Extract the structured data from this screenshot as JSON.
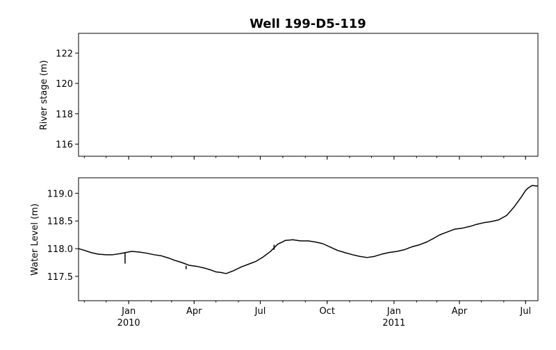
{
  "chart_data": [
    {
      "type": "line",
      "title": "Well 199-D5-119",
      "xlabel": "",
      "ylabel": "River stage (m)",
      "xlim": [
        "2009-10-24",
        "2011-07-18"
      ],
      "ylim": [
        115.2,
        123.3
      ],
      "yticks": [
        116,
        118,
        120,
        122
      ],
      "series": []
    },
    {
      "type": "line",
      "xlabel": "",
      "ylabel": "Water Level (m)",
      "xlim": [
        "2009-10-24",
        "2011-07-18"
      ],
      "ylim": [
        117.06,
        119.28
      ],
      "yticks": [
        117.5,
        118.0,
        118.5,
        119.0
      ],
      "xticks": [
        {
          "date": "2010-01-01",
          "label": "Jan",
          "sublabel": "2010"
        },
        {
          "date": "2010-04-01",
          "label": "Apr",
          "sublabel": ""
        },
        {
          "date": "2010-07-01",
          "label": "Jul",
          "sublabel": ""
        },
        {
          "date": "2010-10-01",
          "label": "Oct",
          "sublabel": ""
        },
        {
          "date": "2011-01-01",
          "label": "Jan",
          "sublabel": "2011"
        },
        {
          "date": "2011-04-01",
          "label": "Apr",
          "sublabel": ""
        },
        {
          "date": "2011-07-01",
          "label": "Jul",
          "sublabel": ""
        }
      ],
      "series": [
        {
          "x": [
            "2009-10-24",
            "2009-11-01",
            "2009-11-10",
            "2009-11-20",
            "2009-12-01",
            "2009-12-10",
            "2009-12-20",
            "2009-12-28",
            "2010-01-05",
            "2010-01-15",
            "2010-01-25",
            "2010-02-05",
            "2010-02-15",
            "2010-02-25",
            "2010-03-05",
            "2010-03-15",
            "2010-03-25",
            "2010-04-05",
            "2010-04-15",
            "2010-04-25",
            "2010-05-01",
            "2010-05-08",
            "2010-05-15",
            "2010-05-25",
            "2010-06-05",
            "2010-06-15",
            "2010-06-25",
            "2010-07-05",
            "2010-07-15",
            "2010-07-25",
            "2010-08-05",
            "2010-08-15",
            "2010-08-25",
            "2010-09-05",
            "2010-09-15",
            "2010-09-25",
            "2010-10-05",
            "2010-10-15",
            "2010-10-25",
            "2010-11-05",
            "2010-11-15",
            "2010-11-25",
            "2010-12-05",
            "2010-12-15",
            "2010-12-25",
            "2011-01-05",
            "2011-01-15",
            "2011-01-25",
            "2011-02-05",
            "2011-02-15",
            "2011-02-25",
            "2011-03-05",
            "2011-03-15",
            "2011-03-25",
            "2011-04-05",
            "2011-04-15",
            "2011-04-25",
            "2011-05-05",
            "2011-05-15",
            "2011-05-25",
            "2011-06-05",
            "2011-06-15",
            "2011-06-25",
            "2011-07-01",
            "2011-07-05",
            "2011-07-10",
            "2011-07-18"
          ],
          "y": [
            118.0,
            117.97,
            117.93,
            117.9,
            117.89,
            117.89,
            117.91,
            117.93,
            117.95,
            117.94,
            117.92,
            117.89,
            117.87,
            117.83,
            117.79,
            117.75,
            117.7,
            117.68,
            117.65,
            117.61,
            117.58,
            117.57,
            117.55,
            117.6,
            117.67,
            117.72,
            117.77,
            117.85,
            117.95,
            118.08,
            118.15,
            118.16,
            118.14,
            118.14,
            118.12,
            118.09,
            118.03,
            117.97,
            117.93,
            117.89,
            117.86,
            117.84,
            117.86,
            117.9,
            117.93,
            117.95,
            117.98,
            118.03,
            118.07,
            118.12,
            118.19,
            118.25,
            118.3,
            118.35,
            118.37,
            118.4,
            118.44,
            118.47,
            118.49,
            118.52,
            118.6,
            118.75,
            118.93,
            119.05,
            119.1,
            119.14,
            119.13
          ]
        }
      ],
      "spikes": [
        {
          "x": "2009-12-27",
          "y_top": 117.92,
          "y_bottom": 117.73
        },
        {
          "x": "2010-07-20",
          "y_top": 118.07,
          "y_bottom": 117.98
        },
        {
          "x": "2010-03-21",
          "y_top": 117.69,
          "y_bottom": 117.63
        }
      ]
    }
  ]
}
